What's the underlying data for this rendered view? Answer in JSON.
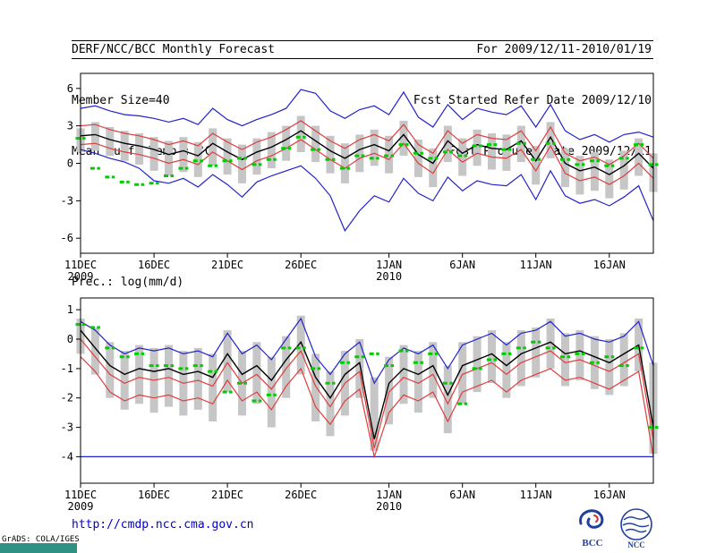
{
  "header": {
    "title": "DERF/NCC/BCC Monthly Forecast",
    "member_size": "Member Size=40",
    "temp_title": "Mean Surf. Temp.: °C",
    "for_range": "For 2009/12/11-2010/01/19",
    "fcst_started": "Fcst Started Refer Date 2009/12/10",
    "fcst_produced": "Fcst Produced Date 2009/12/11"
  },
  "precip_title": "Prec.: log(mm/d)",
  "footer": {
    "url": "http://cmdp.ncc.cma.gov.cn",
    "grads_credit": "GrADS: COLA/IGES",
    "bcc_logo_text": "BCC",
    "ncc_logo_text": "NCC"
  },
  "colors": {
    "link_blue": "#0000cc",
    "taskbar_teal": "#2f9183",
    "envelope_blue": "#2222cc",
    "quartile_red": "#e03c3c",
    "mean_black": "#000000",
    "obs_green": "#00cc00",
    "spread_gray": "#c6c6c6",
    "logo_blue": "#2040a0"
  },
  "chart_data": [
    {
      "type": "line",
      "title": "Mean Surf. Temp.: °C",
      "xlabel": "",
      "ylabel": "°C",
      "ylim": [
        -7.2,
        7.2
      ],
      "yticks": [
        6,
        3,
        0,
        -3,
        -6
      ],
      "grid": false,
      "legend": "none",
      "n_days": 40,
      "x_tick_days": [
        0,
        5,
        10,
        15,
        21,
        26,
        31,
        36
      ],
      "x_tick_labels": [
        "11DEC",
        "16DEC",
        "21DEC",
        "26DEC",
        "1JAN",
        "6JAN",
        "11JAN",
        "16JAN"
      ],
      "x_year_labels": [
        {
          "day": 0,
          "label": "2009"
        },
        {
          "day": 21,
          "label": "2010"
        }
      ],
      "series": [
        {
          "name": "ensemble-spread",
          "type": "bar",
          "color": "#c6c6c6",
          "low": [
            0.9,
            1.0,
            0.6,
            0.2,
            -0.1,
            -0.6,
            -1.0,
            -0.7,
            -1.1,
            -0.2,
            -0.9,
            -1.6,
            -0.9,
            -0.4,
            0.2,
            0.9,
            0.1,
            -0.8,
            -1.6,
            -0.7,
            -0.2,
            -0.8,
            0.6,
            -1.1,
            -1.9,
            0.1,
            -1.0,
            -0.2,
            -0.5,
            -0.6,
            0.1,
            -1.7,
            0.4,
            -1.9,
            -2.5,
            -2.2,
            -2.8,
            -2.1,
            -1.0,
            -2.3
          ],
          "high": [
            2.8,
            3.3,
            2.9,
            2.6,
            2.4,
            2.1,
            1.8,
            2.1,
            1.7,
            2.8,
            2.0,
            1.5,
            2.0,
            2.5,
            3.0,
            3.8,
            3.0,
            2.2,
            1.6,
            2.3,
            2.7,
            2.2,
            3.4,
            1.9,
            1.2,
            3.0,
            2.0,
            2.7,
            2.4,
            2.3,
            3.0,
            1.4,
            3.3,
            1.2,
            0.6,
            0.9,
            0.3,
            1.0,
            2.0,
            0.8
          ]
        },
        {
          "name": "ensemble-max",
          "type": "line",
          "color": "#2222cc",
          "width": 1.2,
          "values": [
            4.4,
            4.6,
            4.2,
            3.9,
            3.8,
            3.6,
            3.3,
            3.6,
            3.1,
            4.4,
            3.5,
            3.0,
            3.5,
            3.9,
            4.4,
            5.9,
            5.6,
            4.2,
            3.6,
            4.3,
            4.6,
            3.9,
            5.7,
            3.7,
            2.9,
            4.7,
            3.5,
            4.4,
            4.1,
            3.9,
            4.6,
            2.9,
            4.7,
            2.6,
            1.9,
            2.3,
            1.7,
            2.3,
            2.5,
            2.1
          ]
        },
        {
          "name": "ensemble-min",
          "type": "line",
          "color": "#2222cc",
          "width": 1.2,
          "values": [
            1.1,
            0.8,
            0.4,
            0.1,
            -0.4,
            -1.4,
            -1.6,
            -1.2,
            -1.9,
            -0.9,
            -1.7,
            -2.7,
            -1.5,
            -1.0,
            -0.6,
            -0.2,
            -1.2,
            -2.6,
            -5.4,
            -3.8,
            -2.6,
            -3.1,
            -1.2,
            -2.4,
            -3.0,
            -1.1,
            -2.2,
            -1.4,
            -1.7,
            -1.8,
            -0.9,
            -2.9,
            -0.6,
            -2.6,
            -3.2,
            -2.9,
            -3.4,
            -2.7,
            -1.8,
            -4.6
          ]
        },
        {
          "name": "upper-quartile",
          "type": "line",
          "color": "#e03c3c",
          "width": 1.2,
          "values": [
            3.0,
            3.1,
            2.7,
            2.4,
            2.2,
            1.9,
            1.5,
            1.8,
            1.4,
            2.4,
            1.7,
            1.1,
            1.7,
            2.1,
            2.7,
            3.4,
            2.6,
            1.8,
            1.2,
            1.9,
            2.3,
            1.8,
            3.1,
            1.5,
            0.8,
            2.6,
            1.6,
            2.3,
            2.0,
            1.9,
            2.6,
            1.0,
            2.9,
            0.8,
            0.2,
            0.5,
            -0.1,
            0.6,
            1.6,
            0.4
          ]
        },
        {
          "name": "lower-quartile",
          "type": "line",
          "color": "#e03c3c",
          "width": 1.2,
          "values": [
            1.5,
            1.6,
            1.2,
            0.9,
            0.7,
            0.4,
            0.0,
            0.3,
            -0.1,
            0.9,
            0.2,
            -0.5,
            0.2,
            0.6,
            1.2,
            1.9,
            1.1,
            0.3,
            -0.4,
            0.4,
            0.8,
            0.3,
            1.6,
            0.0,
            -0.8,
            1.1,
            0.1,
            0.8,
            0.5,
            0.4,
            1.1,
            -0.6,
            1.4,
            -0.8,
            -1.4,
            -1.1,
            -1.7,
            -1.0,
            0.0,
            -1.2
          ]
        },
        {
          "name": "ensemble-mean",
          "type": "line",
          "color": "#000000",
          "width": 1.4,
          "values": [
            2.2,
            2.3,
            1.9,
            1.6,
            1.4,
            1.1,
            0.7,
            1.0,
            0.6,
            1.6,
            0.9,
            0.3,
            0.9,
            1.3,
            1.9,
            2.6,
            1.8,
            1.0,
            0.4,
            1.1,
            1.5,
            1.0,
            2.3,
            0.7,
            0.0,
            1.8,
            0.8,
            1.5,
            1.2,
            1.1,
            1.8,
            0.2,
            2.1,
            0.0,
            -0.6,
            -0.3,
            -0.9,
            -0.2,
            0.8,
            -0.4
          ]
        },
        {
          "name": "observation-dash",
          "type": "dash",
          "color": "#00cc00",
          "values": [
            2.0,
            -0.4,
            -1.1,
            -1.5,
            -1.7,
            -1.6,
            -1.0,
            -0.4,
            0.2,
            -0.2,
            0.2,
            0.4,
            -0.1,
            0.3,
            1.2,
            2.1,
            1.1,
            0.3,
            -0.4,
            0.6,
            0.4,
            0.6,
            1.5,
            0.8,
            0.4,
            0.9,
            0.6,
            1.4,
            1.5,
            1.1,
            1.6,
            0.3,
            1.6,
            0.3,
            -0.1,
            0.2,
            -0.2,
            0.4,
            1.5,
            -0.1
          ]
        }
      ]
    },
    {
      "type": "line",
      "title": "Prec.: log(mm/d)",
      "xlabel": "",
      "ylabel": "log(mm/d)",
      "ylim": [
        -4.9,
        1.4
      ],
      "yticks": [
        1,
        0,
        -1,
        -2,
        -3,
        -4
      ],
      "grid": false,
      "legend": "none",
      "n_days": 40,
      "x_tick_days": [
        0,
        5,
        10,
        15,
        21,
        26,
        31,
        36
      ],
      "x_tick_labels": [
        "11DEC",
        "16DEC",
        "21DEC",
        "26DEC",
        "1JAN",
        "6JAN",
        "11JAN",
        "16JAN"
      ],
      "x_year_labels": [
        {
          "day": 0,
          "label": "2009"
        },
        {
          "day": 21,
          "label": "2010"
        }
      ],
      "series": [
        {
          "name": "ensemble-spread",
          "type": "bar",
          "color": "#c6c6c6",
          "low": [
            -0.5,
            -1.2,
            -2.0,
            -2.4,
            -2.2,
            -2.5,
            -2.3,
            -2.6,
            -2.4,
            -2.8,
            -1.8,
            -2.6,
            -2.2,
            -3.0,
            -2.0,
            -1.2,
            -2.8,
            -3.3,
            -2.6,
            -2.0,
            -3.8,
            -2.9,
            -2.2,
            -2.5,
            -2.0,
            -3.2,
            -2.2,
            -1.8,
            -1.5,
            -2.0,
            -1.6,
            -1.3,
            -1.0,
            -1.6,
            -1.4,
            -1.7,
            -1.9,
            -1.6,
            -1.1,
            -3.9
          ],
          "high": [
            0.7,
            0.4,
            -0.1,
            -0.4,
            -0.2,
            -0.3,
            -0.2,
            -0.4,
            -0.3,
            -0.5,
            0.3,
            -0.4,
            -0.1,
            -0.6,
            0.1,
            0.8,
            -0.5,
            -1.1,
            -0.4,
            0.0,
            -1.3,
            -0.6,
            -0.2,
            -0.4,
            -0.1,
            -0.9,
            -0.1,
            0.1,
            0.3,
            -0.1,
            0.3,
            0.4,
            0.7,
            0.2,
            0.3,
            0.1,
            0.0,
            0.2,
            0.7,
            -0.8
          ]
        },
        {
          "name": "ensemble-max",
          "type": "line",
          "color": "#2222cc",
          "width": 1.2,
          "values": [
            0.6,
            0.3,
            -0.2,
            -0.5,
            -0.3,
            -0.4,
            -0.3,
            -0.5,
            -0.4,
            -0.6,
            0.2,
            -0.5,
            -0.2,
            -0.7,
            0.0,
            0.7,
            -0.6,
            -1.2,
            -0.5,
            -0.1,
            -1.5,
            -0.7,
            -0.3,
            -0.5,
            -0.2,
            -1.0,
            -0.2,
            0.0,
            0.2,
            -0.2,
            0.2,
            0.3,
            0.6,
            0.1,
            0.2,
            0.0,
            -0.1,
            0.1,
            0.6,
            -0.9
          ]
        },
        {
          "name": "ensemble-min-floor",
          "type": "line",
          "color": "#2222cc",
          "width": 1.2,
          "values": [
            -4.0,
            -4.0,
            -4.0,
            -4.0,
            -4.0,
            -4.0,
            -4.0,
            -4.0,
            -4.0,
            -4.0,
            -4.0,
            -4.0,
            -4.0,
            -4.0,
            -4.0,
            -4.0,
            -4.0,
            -4.0,
            -4.0,
            -4.0,
            -4.0,
            -4.0,
            -4.0,
            -4.0,
            -4.0,
            -4.0,
            -4.0,
            -4.0,
            -4.0,
            -4.0,
            -4.0,
            -4.0,
            -4.0,
            -4.0,
            -4.0,
            -4.0,
            -4.0,
            -4.0,
            -4.0,
            -4.0
          ]
        },
        {
          "name": "upper-quartile",
          "type": "line",
          "color": "#e03c3c",
          "width": 1.2,
          "values": [
            0.0,
            -0.6,
            -1.2,
            -1.5,
            -1.3,
            -1.4,
            -1.3,
            -1.5,
            -1.4,
            -1.6,
            -0.8,
            -1.5,
            -1.2,
            -1.7,
            -1.0,
            -0.4,
            -1.6,
            -2.3,
            -1.5,
            -1.1,
            -3.7,
            -1.8,
            -1.3,
            -1.5,
            -1.2,
            -2.2,
            -1.2,
            -1.0,
            -0.8,
            -1.2,
            -0.8,
            -0.6,
            -0.4,
            -0.8,
            -0.7,
            -0.9,
            -1.1,
            -0.8,
            -0.5,
            -3.4
          ]
        },
        {
          "name": "lower-quartile",
          "type": "line",
          "color": "#e03c3c",
          "width": 1.2,
          "values": [
            -0.6,
            -1.1,
            -1.8,
            -2.1,
            -1.9,
            -2.0,
            -1.9,
            -2.1,
            -2.0,
            -2.2,
            -1.4,
            -2.1,
            -1.8,
            -2.4,
            -1.6,
            -1.0,
            -2.3,
            -2.9,
            -2.1,
            -1.7,
            -4.0,
            -2.5,
            -1.9,
            -2.1,
            -1.8,
            -2.8,
            -1.8,
            -1.6,
            -1.4,
            -1.8,
            -1.4,
            -1.2,
            -1.0,
            -1.4,
            -1.3,
            -1.5,
            -1.7,
            -1.4,
            -1.1,
            -4.0
          ]
        },
        {
          "name": "ensemble-mean",
          "type": "line",
          "color": "#000000",
          "width": 1.4,
          "values": [
            0.3,
            -0.3,
            -0.9,
            -1.2,
            -1.0,
            -1.1,
            -1.0,
            -1.2,
            -1.1,
            -1.3,
            -0.5,
            -1.2,
            -0.9,
            -1.4,
            -0.7,
            -0.1,
            -1.3,
            -2.0,
            -1.2,
            -0.8,
            -3.4,
            -1.5,
            -1.0,
            -1.2,
            -0.9,
            -1.9,
            -0.9,
            -0.7,
            -0.5,
            -0.9,
            -0.5,
            -0.3,
            -0.1,
            -0.5,
            -0.4,
            -0.6,
            -0.8,
            -0.5,
            -0.2,
            -3.0
          ]
        },
        {
          "name": "observation-dash",
          "type": "dash",
          "color": "#00cc00",
          "values": [
            0.5,
            0.4,
            -0.3,
            -0.6,
            -0.5,
            -0.9,
            -0.9,
            -1.0,
            -0.9,
            -1.1,
            -1.8,
            -1.5,
            -2.1,
            -1.9,
            -0.3,
            -0.3,
            -1.0,
            -1.5,
            -0.8,
            -0.6,
            -0.5,
            -0.9,
            -0.4,
            -0.8,
            -0.5,
            -1.5,
            -2.2,
            -1.0,
            -0.7,
            -0.5,
            -0.3,
            -0.1,
            -0.3,
            -0.6,
            -0.5,
            -0.8,
            -0.6,
            -0.9,
            -0.3,
            -3.0
          ]
        }
      ]
    }
  ]
}
